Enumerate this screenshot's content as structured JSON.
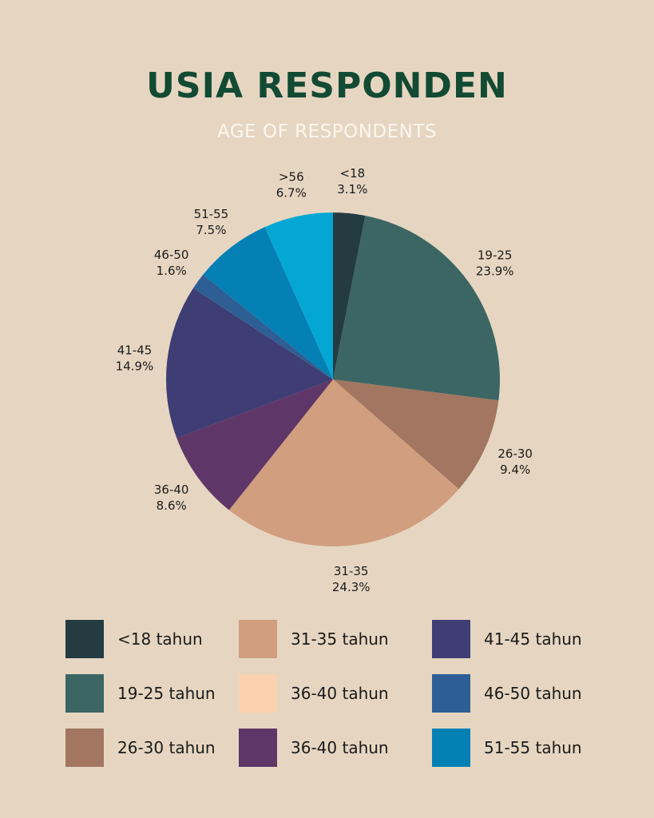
{
  "header": {
    "title": "USIA RESPONDEN",
    "subtitle": "AGE OF RESPONDENTS"
  },
  "chart_data": {
    "type": "pie",
    "title": "USIA RESPONDEN",
    "subtitle": "AGE OF RESPONDENTS",
    "start_angle_deg": 0,
    "direction": "clockwise",
    "slices": [
      {
        "category": "<18",
        "label": "<18",
        "value": 3.1,
        "value_label": "3.1%",
        "color": "#253b42"
      },
      {
        "category": "19-25",
        "label": "19-25",
        "value": 23.9,
        "value_label": "23.9%",
        "color": "#3b6664"
      },
      {
        "category": "26-30",
        "label": "26-30",
        "value": 9.4,
        "value_label": "9.4%",
        "color": "#a27660"
      },
      {
        "category": "31-35",
        "label": "31-35",
        "value": 24.3,
        "value_label": "24.3%",
        "color": "#d19e7f"
      },
      {
        "category": "36-40",
        "label": "36-40",
        "value": 8.6,
        "value_label": "8.6%",
        "color": "#5e3667"
      },
      {
        "category": "41-45",
        "label": "41-45",
        "value": 14.9,
        "value_label": "14.9%",
        "color": "#3e3d74"
      },
      {
        "category": "46-50",
        "label": "46-50",
        "value": 1.6,
        "value_label": "1.6%",
        "color": "#2e5f94"
      },
      {
        "category": "51-55",
        "label": "51-55",
        "value": 7.5,
        "value_label": "7.5%",
        "color": "#0480b5"
      },
      {
        "category": ">56",
        "label": ">56",
        "value": 6.7,
        "value_label": "6.7%",
        "color": "#04a7d4"
      }
    ],
    "legend": {
      "columns": [
        [
          {
            "label": "<18 tahun",
            "color": "#253b42"
          },
          {
            "label": "19-25 tahun",
            "color": "#3b6664"
          },
          {
            "label": "26-30 tahun",
            "color": "#a27660"
          }
        ],
        [
          {
            "label": "31-35 tahun",
            "color": "#d19e7f"
          },
          {
            "label": "36-40 tahun",
            "color": "#fbd1b0"
          },
          {
            "label": "36-40 tahun",
            "color": "#5e3667"
          }
        ],
        [
          {
            "label": "41-45 tahun",
            "color": "#3e3d74"
          },
          {
            "label": "46-50 tahun",
            "color": "#2e5f94"
          },
          {
            "label": "51-55 tahun",
            "color": "#0480b5"
          }
        ]
      ]
    }
  }
}
